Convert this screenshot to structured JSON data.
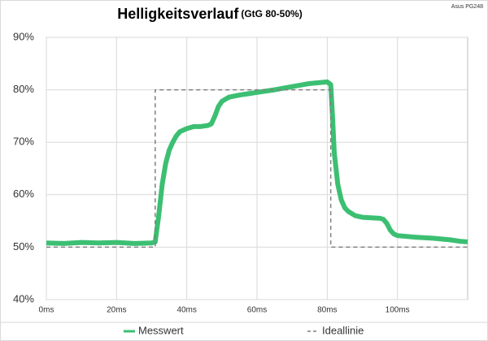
{
  "chart_data": {
    "type": "line",
    "title": "Helligkeitsverlauf",
    "subtitle": "(GtG 80-50%)",
    "annotation": "Asus PG248",
    "xlim": [
      0,
      120
    ],
    "ylim": [
      40,
      90
    ],
    "xticks": [
      {
        "value": 0,
        "label": "0ms"
      },
      {
        "value": 20,
        "label": "20ms"
      },
      {
        "value": 40,
        "label": "40ms"
      },
      {
        "value": 60,
        "label": "60ms"
      },
      {
        "value": 80,
        "label": "80ms"
      },
      {
        "value": 100,
        "label": "100ms"
      }
    ],
    "yticks": [
      {
        "value": 40,
        "label": "40%"
      },
      {
        "value": 50,
        "label": "50%"
      },
      {
        "value": 60,
        "label": "60%"
      },
      {
        "value": 70,
        "label": "70%"
      },
      {
        "value": 80,
        "label": "80%"
      },
      {
        "value": 90,
        "label": "90%"
      }
    ],
    "grid": true,
    "legend": "bottom",
    "series": [
      {
        "name": "Messwert",
        "color": "#3cbf72",
        "style": "solid",
        "x": [
          0,
          5,
          10,
          15,
          20,
          25,
          30,
          31,
          32,
          33,
          34,
          35,
          36,
          37,
          38,
          40,
          42,
          44,
          46,
          47,
          48,
          49,
          50,
          52,
          55,
          58,
          60,
          65,
          70,
          75,
          80,
          81,
          81.5,
          82,
          83,
          84,
          85,
          86,
          88,
          90,
          95,
          96,
          97,
          98,
          99,
          100,
          105,
          110,
          115,
          118,
          120
        ],
        "values": [
          50.8,
          50.7,
          50.9,
          50.8,
          50.9,
          50.7,
          50.8,
          51,
          56,
          62,
          66,
          68.5,
          70,
          71.2,
          72,
          72.6,
          73,
          73,
          73.2,
          73.5,
          75,
          76.8,
          77.8,
          78.6,
          79,
          79.3,
          79.5,
          80,
          80.6,
          81.2,
          81.5,
          81,
          75,
          68,
          62,
          59,
          57.5,
          56.8,
          56,
          55.7,
          55.5,
          55.3,
          54.5,
          53.2,
          52.5,
          52.2,
          51.9,
          51.7,
          51.4,
          51.1,
          51
        ]
      },
      {
        "name": "Ideallinie",
        "color": "#7f7f7f",
        "style": "dashed",
        "x": [
          0,
          31,
          31,
          81,
          81,
          120
        ],
        "values": [
          50,
          50,
          80,
          80,
          50,
          50
        ]
      }
    ]
  }
}
